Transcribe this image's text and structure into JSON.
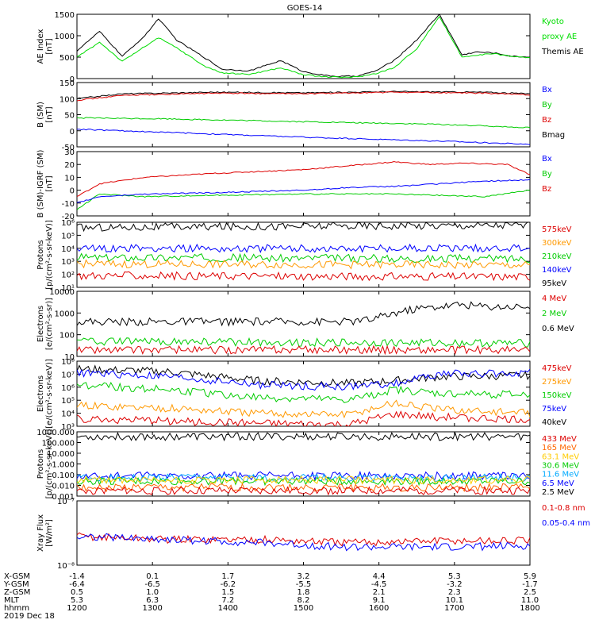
{
  "title": "GOES-14",
  "time_axis": {
    "rows": [
      {
        "label": "X-GSM",
        "values": [
          "-1.4",
          "0.1",
          "1.7",
          "3.2",
          "4.4",
          "5.3",
          "5.9"
        ]
      },
      {
        "label": "Y-GSM",
        "values": [
          "-6.4",
          "-6.5",
          "-6.2",
          "-5.5",
          "-4.5",
          "-3.2",
          "-1.7"
        ]
      },
      {
        "label": "Z-GSM",
        "values": [
          "0.5",
          "1.0",
          "1.5",
          "1.8",
          "2.1",
          "2.3",
          "2.5"
        ]
      },
      {
        "label": "MLT",
        "values": [
          "5.3",
          "6.3",
          "7.2",
          "8.2",
          "9.1",
          "10.1",
          "11.0"
        ]
      },
      {
        "label": "hhmm",
        "values": [
          "1200",
          "1300",
          "1400",
          "1500",
          "1600",
          "1700",
          "1800"
        ]
      }
    ],
    "date": "2019 Dec 18"
  },
  "chart_data": [
    {
      "type": "line",
      "id": "ae",
      "ylabel": [
        "AE Index",
        "[nT]"
      ],
      "ylim": [
        0,
        1500
      ],
      "yticks": [
        "0",
        "500",
        "1000",
        "1500"
      ],
      "legend": [
        {
          "text": "Kyoto",
          "color": "#00dd00"
        },
        {
          "text": "proxy AE",
          "color": "#00dd00"
        },
        {
          "text": "Themis AE",
          "color": "#000000"
        }
      ],
      "series": [
        {
          "name": "Themis AE",
          "color": "#000000",
          "x": [
            0,
            0.05,
            0.1,
            0.15,
            0.18,
            0.22,
            0.28,
            0.32,
            0.38,
            0.45,
            0.5,
            0.55,
            0.58,
            0.62,
            0.66,
            0.7,
            0.75,
            0.8,
            0.85,
            0.88,
            0.92,
            0.96,
            1
          ],
          "y": [
            650,
            1100,
            520,
            1000,
            1400,
            900,
            500,
            220,
            180,
            420,
            160,
            70,
            50,
            60,
            180,
            420,
            900,
            1500,
            550,
            620,
            600,
            520,
            500
          ]
        },
        {
          "name": "Kyoto proxy AE",
          "color": "#00dd00",
          "x": [
            0,
            0.05,
            0.1,
            0.15,
            0.18,
            0.22,
            0.28,
            0.32,
            0.38,
            0.45,
            0.5,
            0.55,
            0.58,
            0.62,
            0.66,
            0.7,
            0.75,
            0.8,
            0.85,
            0.88,
            0.92,
            0.96,
            1
          ],
          "y": [
            500,
            850,
            400,
            750,
            950,
            720,
            300,
            130,
            100,
            250,
            90,
            40,
            30,
            40,
            120,
            250,
            700,
            1450,
            500,
            550,
            580,
            520,
            480
          ]
        }
      ]
    },
    {
      "type": "line",
      "id": "bsm",
      "ylabel": [
        "B (SM)",
        "[nT]"
      ],
      "ylim": [
        -50,
        150
      ],
      "yticks": [
        "-50",
        "0",
        "50",
        "100",
        "150"
      ],
      "legend": [
        {
          "text": "Bx",
          "color": "#0000ff"
        },
        {
          "text": "By",
          "color": "#00cc00"
        },
        {
          "text": "Bz",
          "color": "#dd0000"
        },
        {
          "text": "Bmag",
          "color": "#000000"
        }
      ],
      "series": [
        {
          "name": "Bmag",
          "color": "#000000",
          "x": [
            0,
            0.1,
            0.3,
            0.5,
            0.7,
            0.9,
            1
          ],
          "y": [
            100,
            115,
            120,
            118,
            122,
            120,
            115
          ]
        },
        {
          "name": "Bz",
          "color": "#dd0000",
          "x": [
            0,
            0.1,
            0.3,
            0.5,
            0.7,
            0.9,
            1
          ],
          "y": [
            95,
            110,
            117,
            115,
            120,
            117,
            112
          ]
        },
        {
          "name": "By",
          "color": "#00cc00",
          "x": [
            0,
            0.2,
            0.5,
            0.8,
            1
          ],
          "y": [
            40,
            37,
            28,
            20,
            10
          ]
        },
        {
          "name": "Bx",
          "color": "#0000ff",
          "x": [
            0,
            0.2,
            0.5,
            0.8,
            1
          ],
          "y": [
            5,
            -5,
            -20,
            -32,
            -42
          ]
        }
      ]
    },
    {
      "type": "line",
      "id": "bigrf",
      "ylabel": [
        "B (SM)-IGRF (SM)",
        "[nT]"
      ],
      "ylim": [
        -20,
        30
      ],
      "yticks": [
        "-20",
        "-10",
        "0",
        "10",
        "20",
        "30"
      ],
      "legend": [
        {
          "text": "Bx",
          "color": "#0000ff"
        },
        {
          "text": "By",
          "color": "#00cc00"
        },
        {
          "text": "Bz",
          "color": "#dd0000"
        }
      ],
      "series": [
        {
          "name": "Bz",
          "color": "#dd0000",
          "x": [
            0,
            0.05,
            0.15,
            0.3,
            0.5,
            0.7,
            0.78,
            0.85,
            0.95,
            1
          ],
          "y": [
            -5,
            5,
            10,
            13,
            16,
            22,
            20,
            21,
            20,
            12
          ]
        },
        {
          "name": "By",
          "color": "#00cc00",
          "x": [
            0,
            0.05,
            0.15,
            0.3,
            0.5,
            0.7,
            0.9,
            1
          ],
          "y": [
            -15,
            -3,
            -5,
            -4,
            -3,
            -3,
            -5,
            0
          ]
        },
        {
          "name": "Bx",
          "color": "#0000ff",
          "x": [
            0,
            0.05,
            0.15,
            0.3,
            0.5,
            0.6,
            0.7,
            0.8,
            0.9,
            1
          ],
          "y": [
            -10,
            -5,
            -3,
            -2,
            0,
            2,
            3,
            5,
            7,
            8
          ]
        }
      ]
    },
    {
      "type": "line",
      "id": "protons_kev",
      "log": true,
      "ylabel": [
        "Protons",
        "[p/(cm²-s-sr-keV)]"
      ],
      "ylim": [
        1,
        6
      ],
      "yticks": [
        "10¹",
        "10²",
        "10³",
        "10⁴",
        "10⁵",
        "10⁶"
      ],
      "legend": [
        {
          "text": "575keV",
          "color": "#dd0000"
        },
        {
          "text": "300keV",
          "color": "#ff9900"
        },
        {
          "text": "210keV",
          "color": "#00cc00"
        },
        {
          "text": "140keV",
          "color": "#0000ff"
        },
        {
          "text": "95keV",
          "color": "#000000"
        }
      ],
      "series": [
        {
          "name": "95keV",
          "color": "#000000",
          "x": [
            0,
            1
          ],
          "y": [
            5.6,
            5.8
          ]
        },
        {
          "name": "140keV",
          "color": "#0000ff",
          "x": [
            0,
            1
          ],
          "y": [
            4.0,
            4.0
          ]
        },
        {
          "name": "210keV",
          "color": "#00cc00",
          "x": [
            0,
            1
          ],
          "y": [
            3.3,
            3.2
          ]
        },
        {
          "name": "300keV",
          "color": "#ff9900",
          "x": [
            0,
            1
          ],
          "y": [
            2.8,
            2.7
          ]
        },
        {
          "name": "575keV",
          "color": "#dd0000",
          "x": [
            0,
            1
          ],
          "y": [
            1.9,
            1.8
          ]
        }
      ]
    },
    {
      "type": "line",
      "id": "electrons_mev",
      "log": true,
      "ylabel": [
        "Electrons",
        "[e/(cm²-s-sr)]"
      ],
      "ylim": [
        1,
        4
      ],
      "yticks": [
        "10",
        "100",
        "1000",
        "10000"
      ],
      "legend": [
        {
          "text": "4 MeV",
          "color": "#dd0000"
        },
        {
          "text": "2 MeV",
          "color": "#00cc00"
        },
        {
          "text": "0.6 MeV",
          "color": "#000000"
        }
      ],
      "series": [
        {
          "name": "0.6 MeV",
          "color": "#000000",
          "x": [
            0,
            0.3,
            0.6,
            0.65,
            0.7,
            0.75,
            0.8,
            0.85,
            0.9,
            1
          ],
          "y": [
            2.6,
            2.6,
            2.6,
            2.7,
            3.0,
            3.2,
            3.3,
            3.4,
            3.3,
            3.3
          ]
        },
        {
          "name": "2 MeV",
          "color": "#00cc00",
          "x": [
            0,
            1
          ],
          "y": [
            1.7,
            1.6
          ]
        },
        {
          "name": "4 MeV",
          "color": "#dd0000",
          "x": [
            0,
            1
          ],
          "y": [
            1.3,
            1.3
          ]
        }
      ]
    },
    {
      "type": "line",
      "id": "electrons_kev",
      "log": true,
      "ylabel": [
        "Electrons",
        "[e/(cm²-s-sr-keV)]"
      ],
      "ylim": [
        3,
        8
      ],
      "yticks": [
        "10³",
        "10⁴",
        "10⁵",
        "10⁶",
        "10⁷",
        "10⁸"
      ],
      "legend": [
        {
          "text": "475keV",
          "color": "#dd0000"
        },
        {
          "text": "275keV",
          "color": "#ff9900"
        },
        {
          "text": "150keV",
          "color": "#00cc00"
        },
        {
          "text": "75keV",
          "color": "#0000ff"
        },
        {
          "text": "40keV",
          "color": "#000000"
        }
      ],
      "series": [
        {
          "name": "40keV",
          "color": "#000000",
          "x": [
            0,
            0.2,
            0.4,
            0.6,
            0.7,
            0.8,
            1
          ],
          "y": [
            7.4,
            7.2,
            6.5,
            6.3,
            6.5,
            6.8,
            6.9
          ]
        },
        {
          "name": "75keV",
          "color": "#0000ff",
          "x": [
            0,
            0.2,
            0.4,
            0.6,
            0.7,
            0.8,
            1
          ],
          "y": [
            7.1,
            6.8,
            6.2,
            6.0,
            6.3,
            7.0,
            7.1
          ]
        },
        {
          "name": "150keV",
          "color": "#00cc00",
          "x": [
            0,
            0.2,
            0.4,
            0.6,
            0.7,
            0.8,
            1
          ],
          "y": [
            6.2,
            5.8,
            5.2,
            5.0,
            5.8,
            5.5,
            5.4
          ]
        },
        {
          "name": "275keV",
          "color": "#ff9900",
          "x": [
            0,
            0.2,
            0.4,
            0.6,
            0.7,
            0.8,
            1
          ],
          "y": [
            4.6,
            4.4,
            4.0,
            3.9,
            4.8,
            4.3,
            4.0
          ]
        },
        {
          "name": "475keV",
          "color": "#dd0000",
          "x": [
            0,
            0.2,
            0.4,
            0.6,
            0.7,
            0.8,
            1
          ],
          "y": [
            3.6,
            3.4,
            3.2,
            3.1,
            3.9,
            3.7,
            3.5
          ]
        }
      ]
    },
    {
      "type": "line",
      "id": "protons_mev",
      "log": true,
      "ylabel": [
        "Protons",
        "[p/(cm²-s-sr-keV)]"
      ],
      "ylim": [
        -3,
        3
      ],
      "yticks": [
        "0.001",
        "0.010",
        "0.100",
        "1.000",
        "10.000",
        "100.000",
        "1000.000"
      ],
      "legend": [
        {
          "text": "433 MeV",
          "color": "#dd0000"
        },
        {
          "text": "165 MeV",
          "color": "#ff6600"
        },
        {
          "text": "63.1 MeV",
          "color": "#ffcc00"
        },
        {
          "text": "30.6 MeV",
          "color": "#00cc00"
        },
        {
          "text": "11.6 MeV",
          "color": "#00aaff"
        },
        {
          "text": "6.5 MeV",
          "color": "#0000ff"
        },
        {
          "text": "2.5 MeV",
          "color": "#000000"
        }
      ],
      "series": [
        {
          "name": "2.5 MeV",
          "color": "#000000",
          "x": [
            0,
            1
          ],
          "y": [
            2.55,
            2.55
          ]
        },
        {
          "name": "6.5 MeV",
          "color": "#0000ff",
          "x": [
            0,
            1
          ],
          "y": [
            -1.1,
            -1.1
          ]
        },
        {
          "name": "11.6 MeV",
          "color": "#00aaff",
          "x": [
            0,
            1
          ],
          "y": [
            -1.3,
            -1.3
          ]
        },
        {
          "name": "30.6 MeV",
          "color": "#00cc00",
          "x": [
            0,
            1
          ],
          "y": [
            -1.6,
            -1.6
          ]
        },
        {
          "name": "63.1 MeV",
          "color": "#ffcc00",
          "x": [
            0,
            1
          ],
          "y": [
            -1.5,
            -1.5
          ]
        },
        {
          "name": "165 MeV",
          "color": "#ff6600",
          "x": [
            0,
            1
          ],
          "y": [
            -2.2,
            -2.2
          ]
        },
        {
          "name": "433 MeV",
          "color": "#dd0000",
          "x": [
            0,
            1
          ],
          "y": [
            -2.5,
            -2.5
          ]
        }
      ]
    },
    {
      "type": "line",
      "id": "xray",
      "log": true,
      "ylabel": [
        "Xray Flux",
        "[W/m²]"
      ],
      "ylim": [
        -8,
        -7
      ],
      "yticks": [
        "10⁻⁸",
        "10⁻⁷"
      ],
      "legend": [
        {
          "text": "0.1-0.8 nm",
          "color": "#dd0000"
        },
        {
          "text": "0.05-0.4 nm",
          "color": "#0000ff"
        }
      ],
      "series": [
        {
          "name": "0.1-0.8 nm",
          "color": "#dd0000",
          "x": [
            0,
            0.2,
            0.4,
            0.6,
            0.8,
            1
          ],
          "y": [
            -7.55,
            -7.6,
            -7.6,
            -7.65,
            -7.62,
            -7.62
          ]
        },
        {
          "name": "0.05-0.4 nm",
          "color": "#0000ff",
          "x": [
            0,
            0.2,
            0.4,
            0.6,
            0.8,
            1
          ],
          "y": [
            -7.55,
            -7.6,
            -7.65,
            -7.72,
            -7.72,
            -7.7
          ]
        }
      ]
    }
  ]
}
